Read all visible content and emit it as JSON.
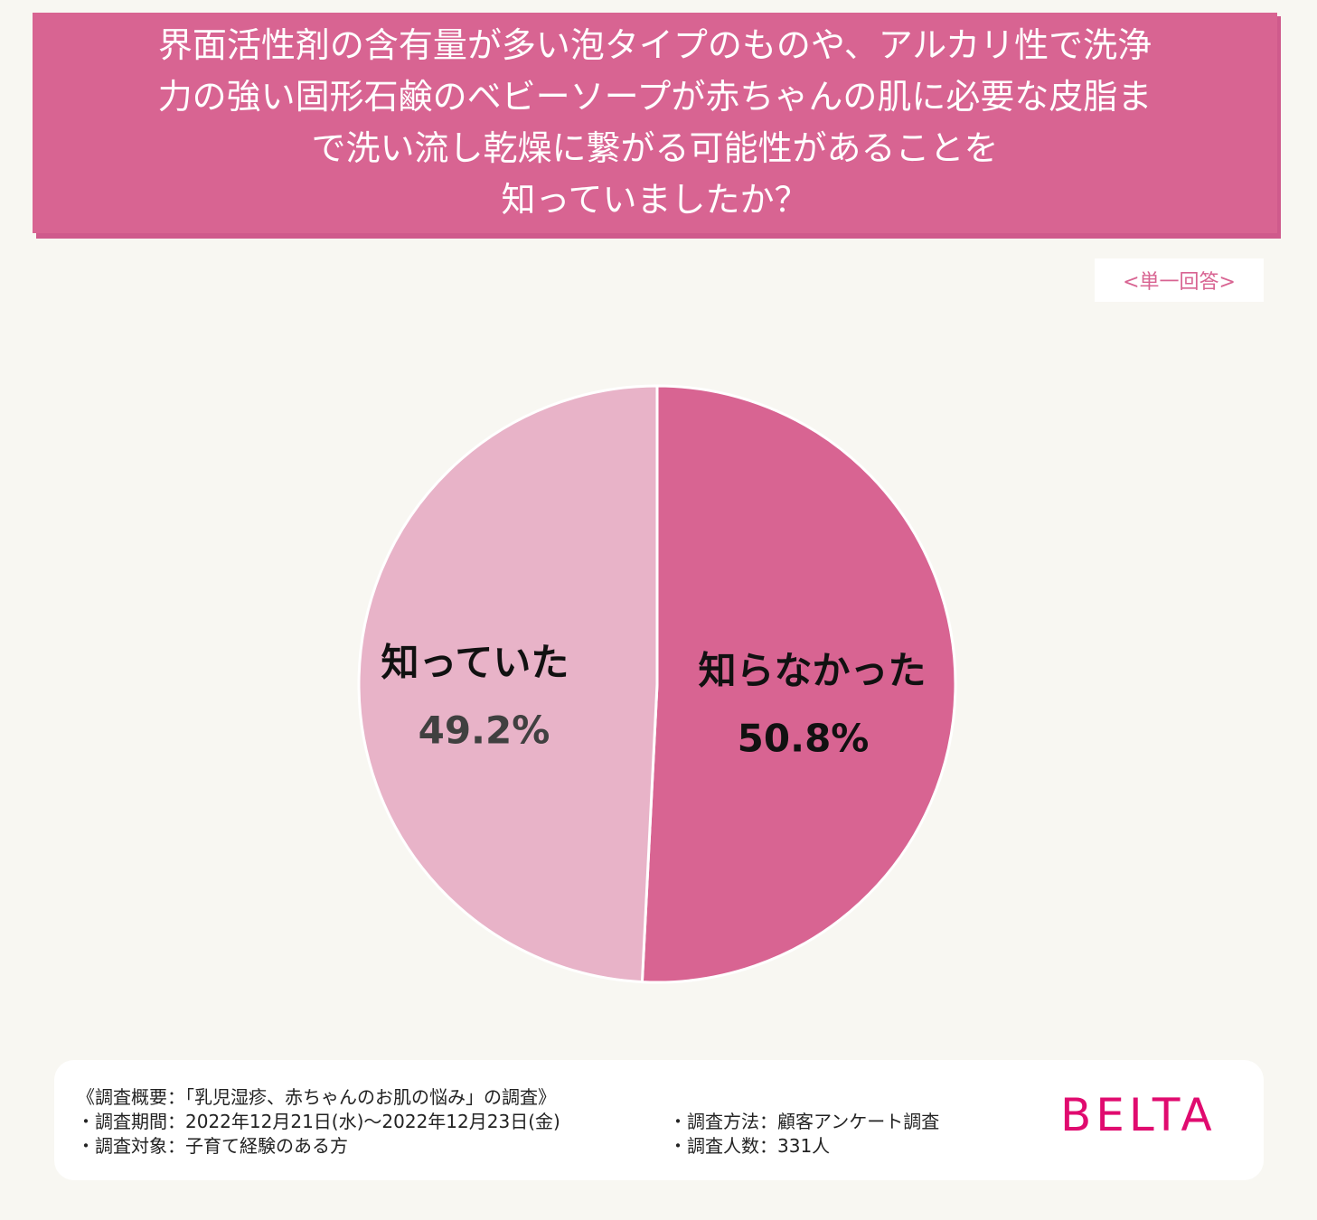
{
  "title": {
    "lines": [
      "界面活性剤の含有量が多い泡タイプのものや、アルカリ性で洗浄",
      "力の強い固形石鹸のベビーソープが赤ちゃんの肌に必要な皮脂ま",
      "で洗い流し乾燥に繋がる可能性があることを",
      "知っていましたか？"
    ]
  },
  "answer_type": "<単一回答>",
  "chart_data": {
    "type": "pie",
    "start": "12 o'clock, clockwise",
    "slices": [
      {
        "label": "知らなかった",
        "value": 50.8,
        "value_label": "50.8%",
        "color": "#d86492"
      },
      {
        "label": "知っていた",
        "value": 49.2,
        "value_label": "49.2%",
        "color": "#e8b3c8"
      }
    ]
  },
  "footer": {
    "overview": "《調査概要：「乳児湿疹、赤ちゃんのお肌の悩み」の調査》",
    "period": "・調査期間：2022年12月21日(水)～2022年12月23日(金)",
    "target": "・調査対象：子育て経験のある方",
    "method": "・調査方法：顧客アンケート調査",
    "count": "・調査人数：331人"
  },
  "brand": "BELTA"
}
